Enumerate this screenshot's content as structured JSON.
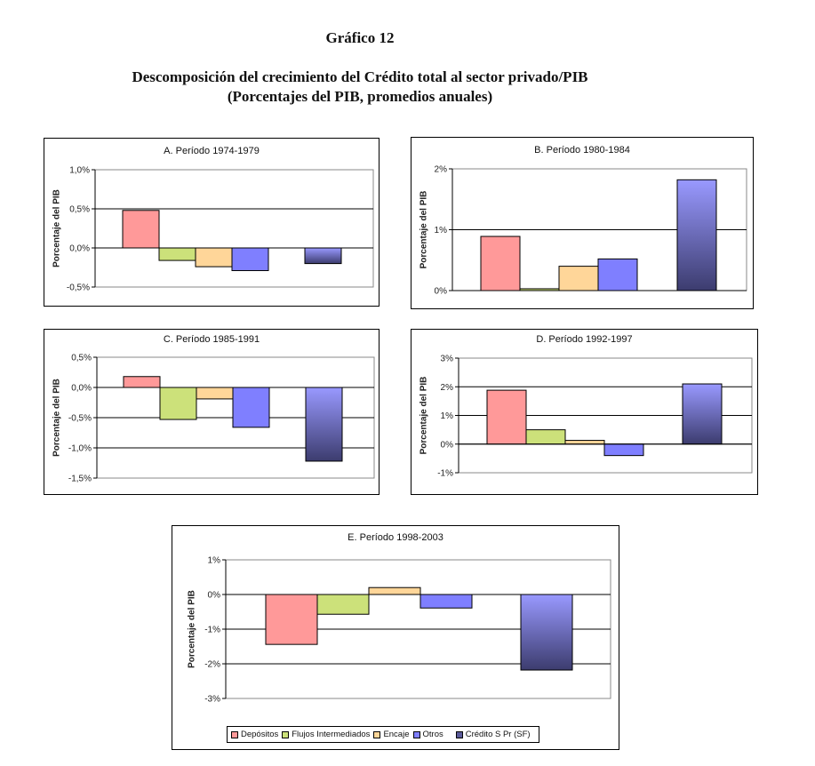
{
  "figure": {
    "label": "Gráfico 12",
    "title_line1": "Descomposición del crecimiento del Crédito total al sector privado/PIB",
    "title_line2": "(Porcentajes del PIB, promedios anuales)"
  },
  "series_colors": {
    "Depósitos": "#FF9999",
    "Flujos Intermediados": "#CCE17A",
    "Encaje": "#FFD699",
    "Otros": "#7F7FFF",
    "Crédito S Pr (SF)": [
      "#9999FF",
      "#3C3C6E"
    ]
  },
  "legend": {
    "items": [
      "Depósitos",
      "Flujos Intermediados",
      "Encaje",
      "Otros",
      "Crédito S Pr (SF)"
    ]
  },
  "chart_data": [
    {
      "type": "bar",
      "title": "A. Período 1974-1979",
      "ylabel": "Porcentaje del PIB",
      "xlabel": "",
      "categories": [
        "Depósitos",
        "Flujos Intermediados",
        "Encaje",
        "Otros",
        "Crédito S Pr (SF)"
      ],
      "values": [
        0.48,
        -0.16,
        -0.24,
        -0.29,
        -0.2
      ],
      "unit": "%",
      "ylim": [
        -0.5,
        1.0
      ],
      "yticks": [
        1.0,
        0.5,
        0.0,
        -0.5
      ],
      "ytick_labels": [
        "1,0%",
        "0,5%",
        "0,0%",
        "-0,5%"
      ],
      "grid": true
    },
    {
      "type": "bar",
      "title": "B. Período 1980-1984",
      "ylabel": "Porcentaje del PIB",
      "xlabel": "",
      "categories": [
        "Depósitos",
        "Flujos Intermediados",
        "Encaje",
        "Otros",
        "Crédito S Pr (SF)"
      ],
      "values": [
        0.89,
        0.03,
        0.4,
        0.52,
        1.82
      ],
      "unit": "%",
      "ylim": [
        0,
        2
      ],
      "yticks": [
        2,
        1,
        0
      ],
      "ytick_labels": [
        "2%",
        "1%",
        "0%"
      ],
      "grid": true
    },
    {
      "type": "bar",
      "title": "C. Período 1985-1991",
      "ylabel": "Porcentaje del PIB",
      "xlabel": "",
      "categories": [
        "Depósitos",
        "Flujos Intermediados",
        "Encaje",
        "Otros",
        "Crédito S Pr (SF)"
      ],
      "values": [
        0.18,
        -0.53,
        -0.19,
        -0.66,
        -1.22
      ],
      "unit": "%",
      "ylim": [
        -1.5,
        0.5
      ],
      "yticks": [
        0.5,
        0.0,
        -0.5,
        -1.0,
        -1.5
      ],
      "ytick_labels": [
        "0,5%",
        "0,0%",
        "-0,5%",
        "-1,0%",
        "-1,5%"
      ],
      "grid": true
    },
    {
      "type": "bar",
      "title": "D. Período 1992-1997",
      "ylabel": "Porcentaje del PIB",
      "xlabel": "",
      "categories": [
        "Depósitos",
        "Flujos Intermediados",
        "Encaje",
        "Otros",
        "Crédito S Pr (SF)"
      ],
      "values": [
        1.88,
        0.5,
        0.13,
        -0.4,
        2.1
      ],
      "unit": "%",
      "ylim": [
        -1,
        3
      ],
      "yticks": [
        3,
        2,
        1,
        0,
        -1
      ],
      "ytick_labels": [
        "3%",
        "2%",
        "1%",
        "0%",
        "-1%"
      ],
      "grid": true
    },
    {
      "type": "bar",
      "title": "E. Período 1998-2003",
      "ylabel": "Porcentaje del PIB",
      "xlabel": "",
      "categories": [
        "Depósitos",
        "Flujos Intermediados",
        "Encaje",
        "Otros",
        "Crédito S Pr (SF)"
      ],
      "values": [
        -1.44,
        -0.57,
        0.2,
        -0.39,
        -2.18
      ],
      "unit": "%",
      "ylim": [
        -3,
        1
      ],
      "yticks": [
        1,
        0,
        -1,
        -2,
        -3
      ],
      "ytick_labels": [
        "1%",
        "0%",
        "-1%",
        "-2%",
        "-3%"
      ],
      "grid": true,
      "legend_position": "bottom"
    }
  ]
}
